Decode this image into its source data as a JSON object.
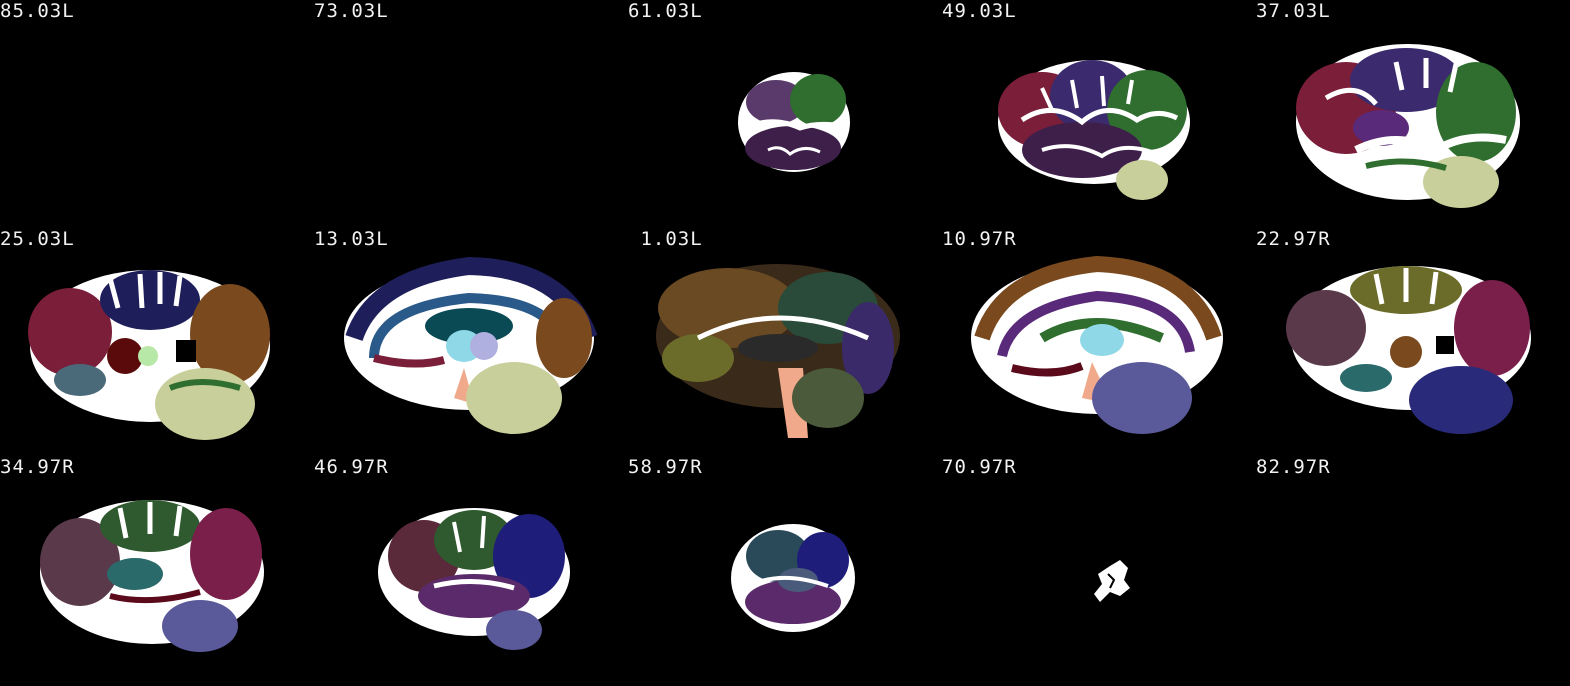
{
  "viewer": {
    "orientation": "sagittal",
    "background_color": "#000000",
    "label_color": "#f2f2f2",
    "slices": [
      {
        "label": "85.03L",
        "content": "empty"
      },
      {
        "label": "73.03L",
        "content": "empty"
      },
      {
        "label": "61.03L",
        "content": "lateral-small"
      },
      {
        "label": "49.03L",
        "content": "lateral"
      },
      {
        "label": "37.03L",
        "content": "lateral-large"
      },
      {
        "label": "25.03L",
        "content": "insular"
      },
      {
        "label": "13.03L",
        "content": "paramedian"
      },
      {
        "label": " 1.03L",
        "content": "midline"
      },
      {
        "label": "10.97R",
        "content": "paramedian"
      },
      {
        "label": "22.97R",
        "content": "insular"
      },
      {
        "label": "34.97R",
        "content": "lateral-large"
      },
      {
        "label": "46.97R",
        "content": "lateral"
      },
      {
        "label": "58.97R",
        "content": "lateral-small"
      },
      {
        "label": "70.97R",
        "content": "fragment"
      },
      {
        "label": "82.97R",
        "content": "empty"
      }
    ],
    "region_colors": {
      "white_matter": "#ffffff",
      "frontal": "#7a1e3a",
      "parietal": "#3b2a6e",
      "temporal": "#3d1f4a",
      "occipital": "#2a2a7a",
      "insula": "#2f6e2f",
      "cerebellum": "#c9cf9a",
      "brainstem": "#f0a98a",
      "thalamus": "#8fd8e8",
      "ventricle": "#0a4a55",
      "cingulate": "#2a5a8a",
      "olive_gyri": "#6b6b2a",
      "brown_gyri": "#7a4a1e"
    }
  }
}
